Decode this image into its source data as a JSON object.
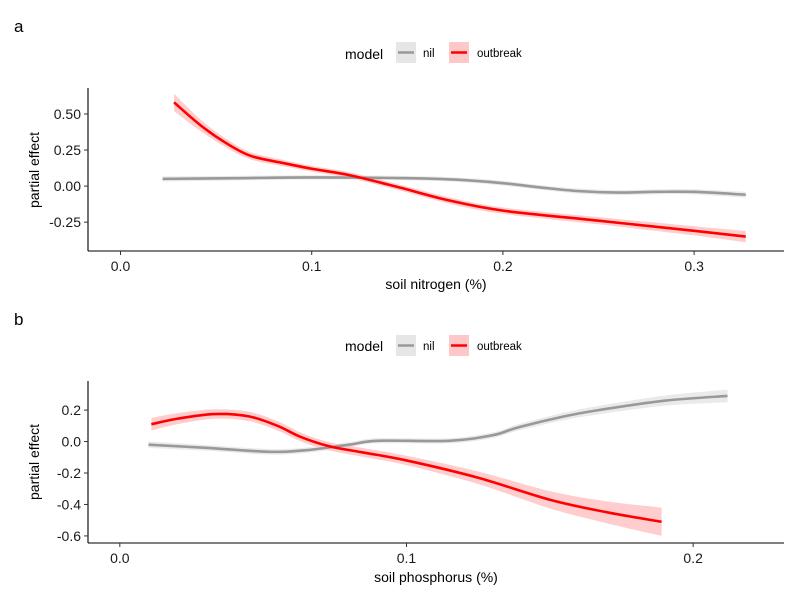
{
  "colors": {
    "nil_line": "#999999",
    "nil_band": "#e6e6e6",
    "outbreak_line": "#ff0000",
    "outbreak_band": "#ffc8c8",
    "axis": "#000000"
  },
  "chart_data": [
    {
      "type": "line",
      "panel_tag": "a",
      "xlabel": "soil nitrogen (%)",
      "ylabel": "partial effect",
      "xlim": [
        -0.017,
        0.347
      ],
      "ylim": [
        -0.45,
        0.68
      ],
      "xticks": [
        0.0,
        0.1,
        0.2,
        0.3
      ],
      "xtick_labels": [
        "0.0",
        "0.1",
        "0.2",
        "0.3"
      ],
      "yticks": [
        0.5,
        0.25,
        0.0,
        -0.25
      ],
      "ytick_labels": [
        "0.50",
        "0.25",
        "0.00",
        "-0.25"
      ],
      "legend": {
        "title": "model",
        "position": "top",
        "entries": [
          "nil",
          "outbreak"
        ]
      },
      "grid": false,
      "series": [
        {
          "name": "nil",
          "x": [
            0.022,
            0.06,
            0.1,
            0.15,
            0.175,
            0.2,
            0.22,
            0.24,
            0.26,
            0.28,
            0.3,
            0.327
          ],
          "y": [
            0.05,
            0.055,
            0.06,
            0.055,
            0.045,
            0.02,
            -0.01,
            -0.035,
            -0.045,
            -0.04,
            -0.04,
            -0.06
          ],
          "band": [
            0.018,
            0.016,
            0.015,
            0.015,
            0.015,
            0.016,
            0.016,
            0.017,
            0.017,
            0.017,
            0.018,
            0.02
          ]
        },
        {
          "name": "outbreak",
          "x": [
            0.028,
            0.042,
            0.055,
            0.068,
            0.085,
            0.1,
            0.12,
            0.146,
            0.172,
            0.2,
            0.25,
            0.3,
            0.327
          ],
          "y": [
            0.58,
            0.42,
            0.3,
            0.21,
            0.16,
            0.12,
            0.075,
            -0.01,
            -0.1,
            -0.17,
            -0.24,
            -0.31,
            -0.35
          ],
          "band": [
            0.06,
            0.04,
            0.03,
            0.025,
            0.022,
            0.02,
            0.02,
            0.02,
            0.022,
            0.022,
            0.025,
            0.032,
            0.04
          ]
        }
      ]
    },
    {
      "type": "line",
      "panel_tag": "b",
      "xlabel": "soil phosphorus (%)",
      "ylabel": "partial effect",
      "xlim": [
        -0.0111,
        0.2317
      ],
      "ylim": [
        -0.645,
        0.385
      ],
      "xticks": [
        0.0,
        0.1,
        0.2
      ],
      "xtick_labels": [
        "0.0",
        "0.1",
        "0.2"
      ],
      "yticks": [
        0.2,
        0.0,
        -0.2,
        -0.4,
        -0.6
      ],
      "ytick_labels": [
        "0.2",
        "0.0",
        "-0.2",
        "-0.4",
        "-0.6"
      ],
      "legend": {
        "title": "model",
        "position": "top",
        "entries": [
          "nil",
          "outbreak"
        ]
      },
      "grid": false,
      "series": [
        {
          "name": "nil",
          "x": [
            0.01,
            0.03,
            0.052,
            0.065,
            0.08,
            0.09,
            0.115,
            0.13,
            0.139,
            0.155,
            0.167,
            0.19,
            0.212
          ],
          "y": [
            -0.02,
            -0.04,
            -0.065,
            -0.055,
            -0.02,
            0.005,
            0.005,
            0.04,
            0.09,
            0.16,
            0.2,
            0.26,
            0.29
          ],
          "band": [
            0.02,
            0.018,
            0.018,
            0.017,
            0.016,
            0.016,
            0.016,
            0.018,
            0.02,
            0.024,
            0.027,
            0.032,
            0.04
          ]
        },
        {
          "name": "outbreak",
          "x": [
            0.011,
            0.02,
            0.033,
            0.045,
            0.055,
            0.063,
            0.073,
            0.085,
            0.1,
            0.125,
            0.15,
            0.17,
            0.189
          ],
          "y": [
            0.11,
            0.145,
            0.175,
            0.16,
            0.1,
            0.03,
            -0.03,
            -0.07,
            -0.12,
            -0.23,
            -0.37,
            -0.45,
            -0.51
          ],
          "band": [
            0.04,
            0.035,
            0.03,
            0.03,
            0.03,
            0.028,
            0.026,
            0.028,
            0.03,
            0.04,
            0.055,
            0.07,
            0.09
          ]
        }
      ]
    }
  ]
}
